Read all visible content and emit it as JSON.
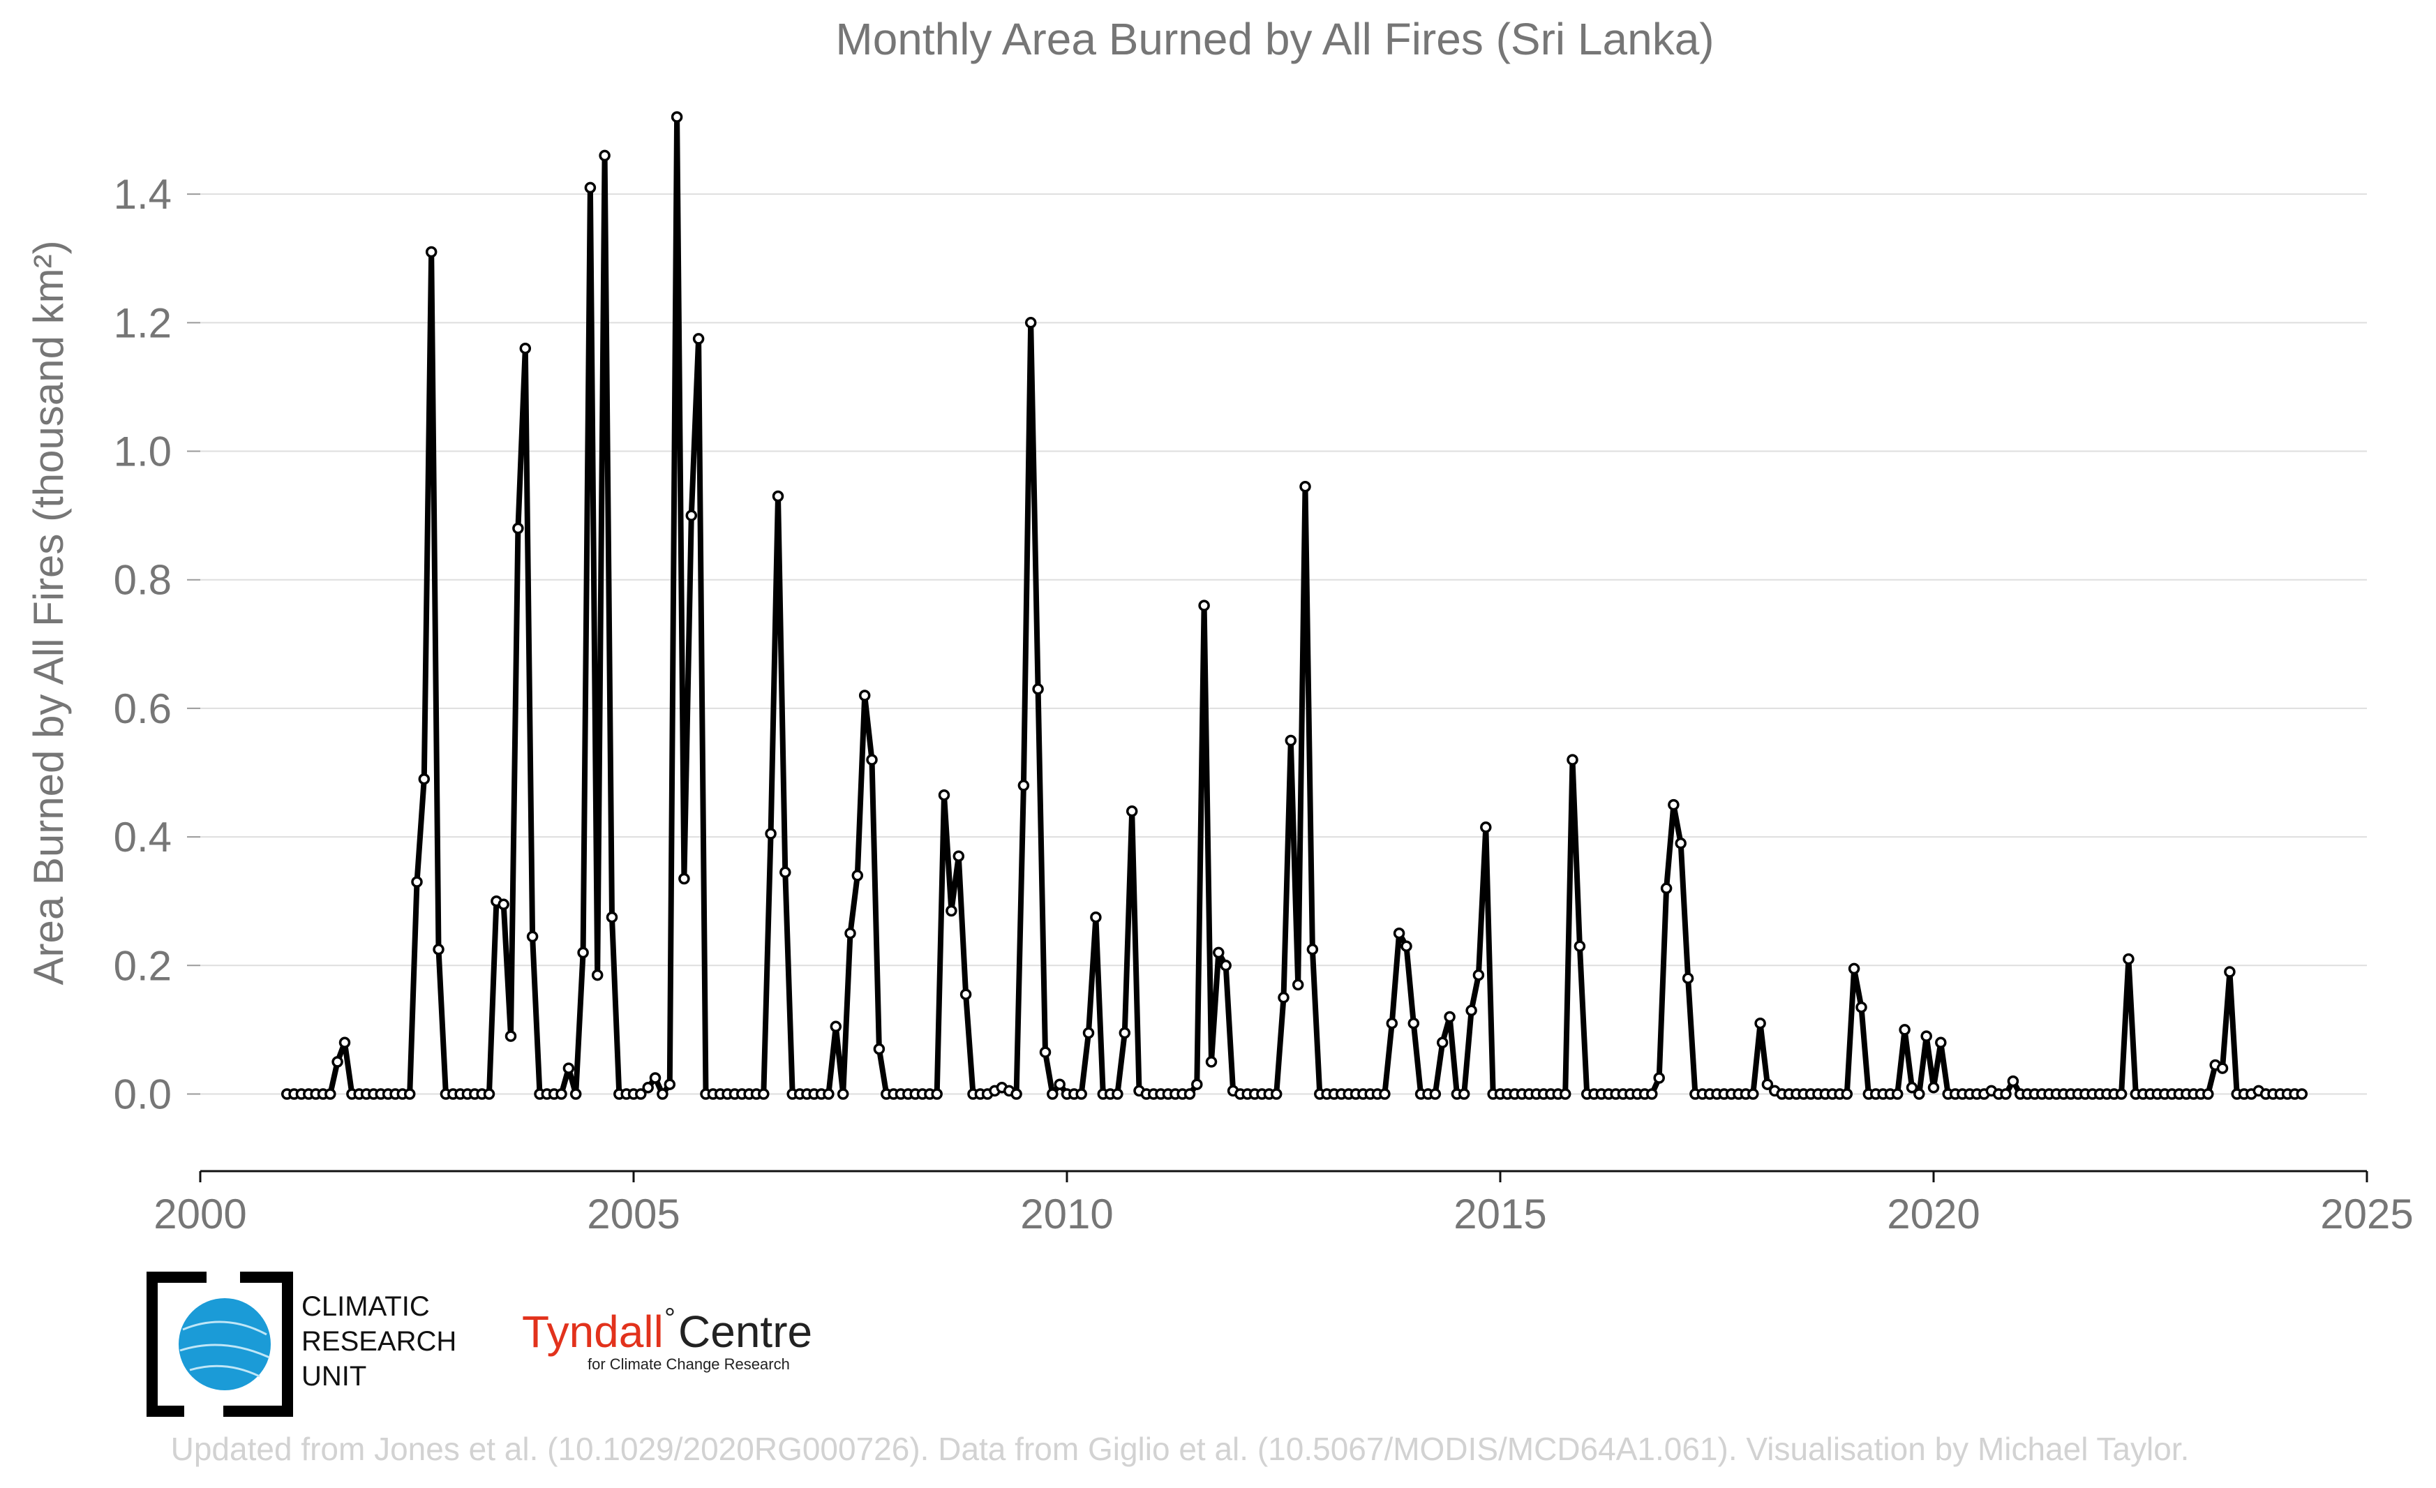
{
  "chart_data": {
    "type": "line",
    "title": "Monthly Area Burned by All Fires (Sri Lanka)",
    "ylabel": "Area Burned by All Fires (thousand km²)",
    "xlim": [
      2000,
      2025
    ],
    "ylim": [
      -0.12,
      1.55
    ],
    "x_ticks": [
      "2000",
      "2005",
      "2010",
      "2015",
      "2020",
      "2025"
    ],
    "y_ticks": [
      "0.0",
      "0.2",
      "0.4",
      "0.6",
      "0.8",
      "1.0",
      "1.2",
      "1.4"
    ],
    "grid": "horizontal",
    "series": [
      {
        "start": "2001-01",
        "values": [
          0,
          0,
          0,
          0,
          0,
          0,
          0,
          0.05,
          0.08,
          0,
          0,
          0,
          0,
          0,
          0,
          0,
          0,
          0,
          0.33,
          0.49,
          1.31,
          0.225,
          0,
          0,
          0,
          0,
          0,
          0,
          0,
          0.3,
          0.295,
          0.09,
          0.88,
          1.16,
          0.245,
          0,
          0,
          0,
          0,
          0.04,
          0,
          0.22,
          1.41,
          0.185,
          1.46,
          0.275,
          0,
          0,
          0,
          0,
          0.01,
          0.025,
          0,
          0.015,
          1.52,
          0.335,
          0.9,
          1.175,
          0,
          0,
          0,
          0,
          0,
          0,
          0,
          0,
          0,
          0.405,
          0.93,
          0.345,
          0,
          0,
          0,
          0,
          0,
          0,
          0.105,
          0,
          0.25,
          0.34,
          0.62,
          0.52,
          0.07,
          0,
          0,
          0,
          0,
          0,
          0,
          0,
          0,
          0.465,
          0.285,
          0.37,
          0.155,
          0,
          0,
          0,
          0.005,
          0.01,
          0.005,
          0,
          0.48,
          1.2,
          0.63,
          0.065,
          0,
          0.015,
          0,
          0,
          0,
          0.095,
          0.275,
          0,
          0,
          0,
          0.095,
          0.44,
          0.005,
          0,
          0,
          0,
          0,
          0,
          0,
          0,
          0.015,
          0.76,
          0.05,
          0.22,
          0.2,
          0.005,
          0,
          0,
          0,
          0,
          0,
          0,
          0.15,
          0.55,
          0.17,
          0.945,
          0.225,
          0,
          0,
          0,
          0,
          0,
          0,
          0,
          0,
          0,
          0,
          0.11,
          0.25,
          0.23,
          0.11,
          0,
          0,
          0,
          0.08,
          0.12,
          0,
          0,
          0.13,
          0.185,
          0.415,
          0,
          0,
          0,
          0,
          0,
          0,
          0,
          0,
          0,
          0,
          0,
          0.52,
          0.23,
          0,
          0,
          0,
          0,
          0,
          0,
          0,
          0,
          0,
          0,
          0.025,
          0.32,
          0.45,
          0.39,
          0.18,
          0,
          0,
          0,
          0,
          0,
          0,
          0,
          0,
          0,
          0.11,
          0.015,
          0.005,
          0,
          0,
          0,
          0,
          0,
          0,
          0,
          0,
          0,
          0,
          0.195,
          0.135,
          0,
          0,
          0,
          0,
          0,
          0.1,
          0.01,
          0,
          0.09,
          0.01,
          0.08,
          0,
          0,
          0,
          0,
          0,
          0,
          0.005,
          0,
          0,
          0.02,
          0,
          0,
          0,
          0,
          0,
          0,
          0,
          0,
          0,
          0,
          0,
          0,
          0,
          0,
          0,
          0.21,
          0,
          0,
          0,
          0,
          0,
          0,
          0,
          0,
          0,
          0,
          0,
          0.045,
          0.04,
          0.19,
          0,
          0,
          0,
          0.005,
          0,
          0,
          0,
          0,
          0,
          0
        ]
      }
    ]
  },
  "logos": {
    "cru_line1": "CLIMATIC",
    "cru_line2": "RESEARCH",
    "cru_line3": "UNIT",
    "tyndall_red": "Tyndall",
    "tyndall_black": "Centre",
    "tyndall_sub": "for Climate Change Research"
  },
  "footer": "Updated from Jones et al. (10.1029/2020RG000726). Data from Giglio et al. (10.5067/MODIS/MCD64A1.061). Visualisation by Michael Taylor."
}
